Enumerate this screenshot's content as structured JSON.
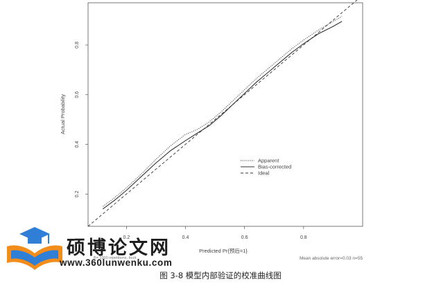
{
  "chart_data": {
    "type": "line",
    "xlabel": "Predicted Pr{预后=1}",
    "ylabel": "Actual Probability",
    "xlim": [
      0.07,
      1.0
    ],
    "ylim": [
      0.07,
      0.97
    ],
    "x_ticks": [
      0.2,
      0.4,
      0.6,
      0.8
    ],
    "y_ticks": [
      0.2,
      0.4,
      0.6,
      0.8
    ],
    "x_tick_labels": [
      "0.2",
      "0.4",
      "0.6",
      "0.8"
    ],
    "y_tick_labels": [
      "0.2",
      "0.4",
      "0.6",
      "0.8"
    ],
    "legend_position": "center-right",
    "series": [
      {
        "name": "Apparent",
        "style": "dotted",
        "x": [
          0.12,
          0.16,
          0.2,
          0.25,
          0.3,
          0.35,
          0.4,
          0.44,
          0.48,
          0.52,
          0.56,
          0.6,
          0.64,
          0.68,
          0.72,
          0.76,
          0.8,
          0.85,
          0.9,
          0.93
        ],
        "y": [
          0.15,
          0.185,
          0.225,
          0.28,
          0.34,
          0.395,
          0.44,
          0.46,
          0.49,
          0.53,
          0.575,
          0.62,
          0.665,
          0.705,
          0.745,
          0.785,
          0.82,
          0.86,
          0.895,
          0.915
        ]
      },
      {
        "name": "Bias-corrected",
        "style": "solid",
        "x": [
          0.12,
          0.16,
          0.2,
          0.25,
          0.3,
          0.35,
          0.4,
          0.44,
          0.48,
          0.52,
          0.56,
          0.6,
          0.64,
          0.68,
          0.72,
          0.76,
          0.8,
          0.85,
          0.9,
          0.93
        ],
        "y": [
          0.14,
          0.175,
          0.215,
          0.27,
          0.325,
          0.375,
          0.415,
          0.445,
          0.475,
          0.515,
          0.56,
          0.605,
          0.65,
          0.69,
          0.73,
          0.77,
          0.805,
          0.845,
          0.875,
          0.895
        ]
      },
      {
        "name": "Ideal",
        "style": "dashed",
        "x": [
          0.07,
          1.0
        ],
        "y": [
          0.07,
          1.0
        ]
      }
    ],
    "footer_left": "B= 1000 repetitions, boot",
    "footer_right": "Mean absolute error=0.03 n=55"
  },
  "caption": "图 3-8  模型内部验证的校准曲线图",
  "watermark": {
    "name": "硕博论文网",
    "url": "www.360lunwenku.com"
  },
  "colors": {
    "line": "#333333",
    "frame": "#555555",
    "watermark_blue": "#2f7fd6",
    "watermark_orange": "#f28c1b"
  }
}
